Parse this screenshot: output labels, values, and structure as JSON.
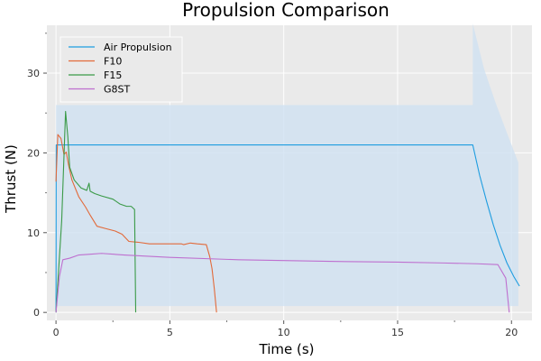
{
  "chart_data": {
    "type": "line",
    "title": "Propulsion Comparison",
    "xlabel": "Time (s)",
    "ylabel": "Thrust (N)",
    "xlim": [
      -0.4,
      20.9
    ],
    "ylim": [
      -1,
      36
    ],
    "xticks": [
      0,
      5,
      10,
      15,
      20
    ],
    "yticks": [
      0,
      10,
      20,
      30
    ],
    "grid": true,
    "legend_position": "top-left",
    "band": {
      "series": "Air Propulsion",
      "color": "#cfe1f1",
      "upper": [
        [
          0,
          26
        ],
        [
          18.3,
          26
        ],
        [
          18.3,
          36.2
        ],
        [
          18.8,
          30.5
        ],
        [
          19.3,
          26.3
        ],
        [
          19.8,
          22.5
        ],
        [
          20.3,
          18.8
        ]
      ],
      "lower": [
        [
          20.3,
          0.8
        ],
        [
          19.8,
          0.8
        ],
        [
          0,
          0.8
        ]
      ]
    },
    "series": [
      {
        "name": "Air Propulsion",
        "color": "#1f9de0",
        "points": [
          [
            0,
            0
          ],
          [
            0.01,
            21
          ],
          [
            18.3,
            21
          ],
          [
            18.6,
            17.2
          ],
          [
            18.9,
            14.0
          ],
          [
            19.2,
            11.0
          ],
          [
            19.5,
            8.4
          ],
          [
            19.8,
            6.2
          ],
          [
            20.1,
            4.5
          ],
          [
            20.35,
            3.3
          ]
        ]
      },
      {
        "name": "F10",
        "color": "#e26a3a",
        "points": [
          [
            0,
            16.4
          ],
          [
            0.08,
            22.3
          ],
          [
            0.22,
            21.8
          ],
          [
            0.35,
            19.8
          ],
          [
            0.45,
            20.1
          ],
          [
            0.55,
            18.5
          ],
          [
            0.7,
            16.6
          ],
          [
            1.0,
            14.5
          ],
          [
            1.3,
            13.2
          ],
          [
            1.5,
            12.2
          ],
          [
            1.8,
            10.8
          ],
          [
            2.2,
            10.5
          ],
          [
            2.6,
            10.2
          ],
          [
            2.9,
            9.8
          ],
          [
            3.2,
            8.9
          ],
          [
            3.6,
            8.8
          ],
          [
            4.1,
            8.6
          ],
          [
            4.6,
            8.6
          ],
          [
            5.0,
            8.6
          ],
          [
            5.5,
            8.6
          ],
          [
            5.6,
            8.5
          ],
          [
            5.9,
            8.7
          ],
          [
            6.2,
            8.6
          ],
          [
            6.6,
            8.5
          ],
          [
            6.75,
            7.0
          ],
          [
            6.85,
            5.5
          ],
          [
            6.95,
            3.0
          ],
          [
            7.05,
            0
          ]
        ]
      },
      {
        "name": "F15",
        "color": "#3a9a47",
        "points": [
          [
            0,
            0
          ],
          [
            0.25,
            11.5
          ],
          [
            0.42,
            25.2
          ],
          [
            0.52,
            22.0
          ],
          [
            0.6,
            18.2
          ],
          [
            0.8,
            16.6
          ],
          [
            1.1,
            15.6
          ],
          [
            1.35,
            15.3
          ],
          [
            1.45,
            16.2
          ],
          [
            1.5,
            15.2
          ],
          [
            1.7,
            14.9
          ],
          [
            2.0,
            14.6
          ],
          [
            2.5,
            14.2
          ],
          [
            2.8,
            13.6
          ],
          [
            3.1,
            13.3
          ],
          [
            3.3,
            13.3
          ],
          [
            3.45,
            12.9
          ],
          [
            3.5,
            0
          ]
        ]
      },
      {
        "name": "G8ST",
        "color": "#be6fcf",
        "points": [
          [
            0,
            0
          ],
          [
            0.15,
            4.5
          ],
          [
            0.3,
            6.6
          ],
          [
            0.6,
            6.8
          ],
          [
            1.0,
            7.2
          ],
          [
            1.5,
            7.3
          ],
          [
            2.0,
            7.4
          ],
          [
            3.0,
            7.2
          ],
          [
            5.0,
            6.9
          ],
          [
            8.0,
            6.6
          ],
          [
            12.0,
            6.4
          ],
          [
            15.0,
            6.3
          ],
          [
            17.0,
            6.2
          ],
          [
            18.5,
            6.1
          ],
          [
            19.4,
            6.0
          ],
          [
            19.75,
            4.3
          ],
          [
            19.9,
            0
          ]
        ]
      }
    ]
  }
}
